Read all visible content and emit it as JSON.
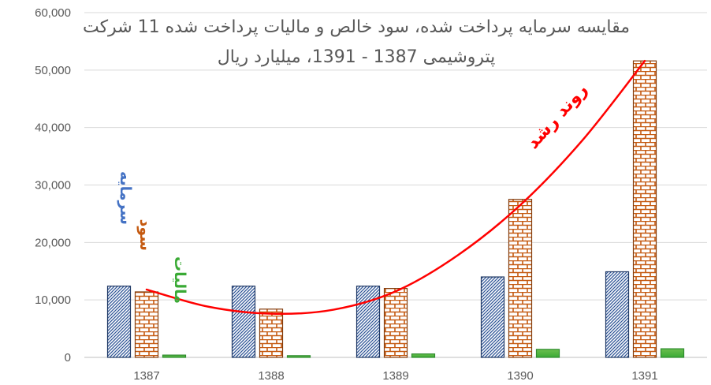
{
  "chart_data": {
    "type": "bar",
    "title_lines": [
      "مقایسه سرمایه پرداخت شده، سود خالص و مالیات پرداخت شده 11 شرکت",
      "پتروشیمی 1387 - 1391، میلیارد ریال"
    ],
    "xlabel": "",
    "ylabel": "",
    "categories": [
      "1387",
      "1388",
      "1389",
      "1390",
      "1391"
    ],
    "ylim": [
      0,
      60000
    ],
    "yticks": [
      0,
      10000,
      20000,
      30000,
      40000,
      50000,
      60000
    ],
    "ytick_labels": [
      "0",
      "10,000",
      "20,000",
      "30,000",
      "40,000",
      "50,000",
      "60,000"
    ],
    "grid": true,
    "series": [
      {
        "name": "سرمایه",
        "values": [
          12400,
          12400,
          12400,
          14000,
          14900
        ],
        "color": "#4472c4"
      },
      {
        "name": "سود",
        "values": [
          11400,
          8400,
          12000,
          27500,
          51600
        ],
        "color": "#c55a11"
      },
      {
        "name": "مالیات",
        "values": [
          400,
          300,
          600,
          1400,
          1500
        ],
        "color": "#3aaa35"
      }
    ],
    "trend": {
      "label": "روند رشد",
      "color": "#ff0000",
      "points": [
        [
          0,
          11800
        ],
        [
          0.5,
          8800
        ],
        [
          1,
          7600
        ],
        [
          1.5,
          8300
        ],
        [
          2,
          11500
        ],
        [
          2.5,
          17800
        ],
        [
          3,
          26500
        ],
        [
          3.5,
          37800
        ],
        [
          4,
          51600
        ]
      ]
    }
  }
}
